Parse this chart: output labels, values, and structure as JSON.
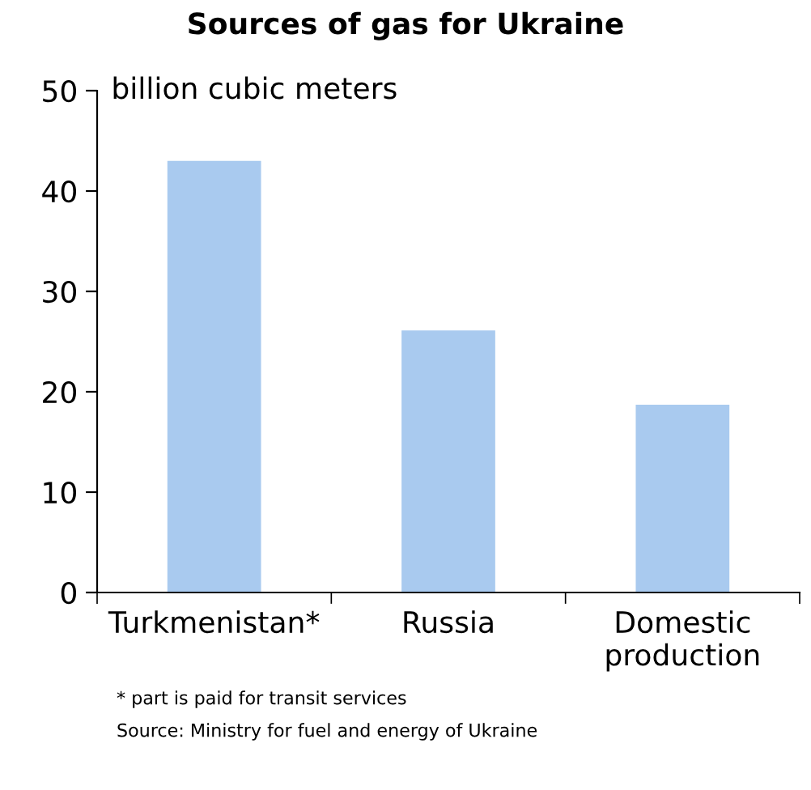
{
  "chart_data": {
    "type": "bar",
    "title": "Sources of gas for Ukraine",
    "ylabel": "billion cubic meters",
    "categories": [
      "Turkmenistan*",
      "Russia",
      "Domestic\nproduction"
    ],
    "values": [
      43,
      26.1,
      18.7
    ],
    "color": "#a9caef",
    "ylim": [
      0,
      50
    ],
    "yticks": [
      0,
      10,
      20,
      30,
      40,
      50
    ],
    "grid": false,
    "legend": false,
    "annotations": [
      "* part is paid for transit services",
      "Source: Ministry for fuel and energy of Ukraine"
    ]
  }
}
